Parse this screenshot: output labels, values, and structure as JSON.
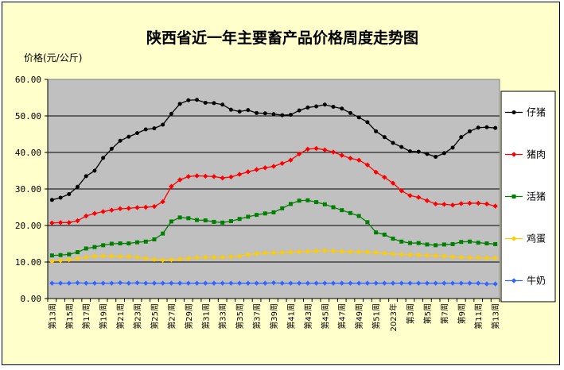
{
  "chart_data": {
    "type": "line",
    "title": "陕西省近一年主要畜产品价格周度走势图",
    "ylabel": "价格(元/公斤)",
    "xlabel": "",
    "ylim": [
      0,
      60
    ],
    "yticks": [
      "0.00",
      "10.00",
      "20.00",
      "30.00",
      "40.00",
      "50.00",
      "60.00"
    ],
    "x": [
      "第13周",
      "第14周",
      "第15周",
      "第16周",
      "第17周",
      "第18周",
      "第19周",
      "第20周",
      "第21周",
      "第22周",
      "第23周",
      "第24周",
      "第25周",
      "第26周",
      "第27周",
      "第28周",
      "第29周",
      "第30周",
      "第31周",
      "第32周",
      "第33周",
      "第34周",
      "第35周",
      "第36周",
      "第37周",
      "第38周",
      "第39周",
      "第40周",
      "第41周",
      "第42周",
      "第43周",
      "第44周",
      "第45周",
      "第46周",
      "第47周",
      "第48周",
      "第49周",
      "第50周",
      "第51周",
      "第52周",
      "2023年",
      "第2周",
      "第3周",
      "第4周",
      "第5周",
      "第6周",
      "第7周",
      "第8周",
      "第9周",
      "第10周",
      "第11周",
      "第12周",
      "第13周"
    ],
    "grid": true,
    "legend_position": "right",
    "plot_background": "#C0C0C0",
    "chart_background": "#FFFFCC",
    "series": [
      {
        "name": "仔猪",
        "color": "#000000",
        "marker": "circle",
        "values": [
          27.0,
          27.6,
          28.6,
          30.6,
          33.5,
          35.0,
          38.5,
          41.0,
          43.2,
          44.3,
          45.3,
          46.3,
          46.6,
          47.6,
          50.6,
          53.3,
          54.3,
          54.4,
          53.6,
          53.5,
          53.1,
          51.7,
          51.2,
          51.6,
          50.8,
          50.7,
          50.5,
          50.2,
          50.3,
          51.5,
          52.3,
          52.6,
          53.1,
          52.5,
          52.0,
          50.8,
          49.6,
          48.3,
          45.8,
          44.2,
          42.6,
          41.5,
          40.3,
          40.2,
          39.6,
          38.8,
          39.8,
          41.3,
          44.2,
          45.8,
          46.8,
          46.9,
          46.7
        ]
      },
      {
        "name": "猪肉",
        "color": "#FF0000",
        "marker": "diamond",
        "values": [
          20.7,
          20.8,
          20.8,
          21.3,
          22.6,
          23.3,
          23.8,
          24.2,
          24.6,
          24.7,
          24.9,
          25.0,
          25.2,
          26.5,
          30.7,
          32.5,
          33.4,
          33.6,
          33.5,
          33.4,
          33.0,
          33.3,
          34.0,
          34.7,
          35.3,
          35.8,
          36.2,
          37.0,
          37.9,
          39.6,
          40.9,
          41.1,
          40.7,
          40.1,
          39.2,
          38.4,
          37.9,
          36.6,
          34.6,
          33.2,
          31.6,
          29.5,
          28.2,
          27.7,
          26.8,
          25.9,
          25.8,
          25.6,
          26.0,
          26.1,
          26.1,
          25.9,
          25.3
        ]
      },
      {
        "name": "活猪",
        "color": "#008000",
        "marker": "square",
        "values": [
          11.8,
          11.9,
          12.1,
          12.7,
          13.7,
          14.1,
          14.6,
          15.0,
          15.1,
          15.1,
          15.4,
          15.6,
          16.2,
          17.8,
          21.1,
          22.2,
          22.0,
          21.5,
          21.4,
          21.0,
          20.8,
          21.2,
          21.8,
          22.4,
          22.9,
          23.3,
          23.6,
          24.7,
          25.9,
          26.8,
          26.9,
          26.4,
          25.8,
          25.0,
          24.2,
          23.4,
          22.6,
          20.9,
          18.1,
          17.5,
          16.4,
          15.6,
          15.2,
          15.2,
          14.8,
          14.6,
          14.8,
          14.9,
          15.5,
          15.6,
          15.3,
          15.1,
          14.9
        ]
      },
      {
        "name": "鸡蛋",
        "color": "#FFCC00",
        "marker": "diamond",
        "values": [
          10.2,
          10.4,
          10.6,
          11.0,
          11.3,
          11.6,
          11.7,
          11.6,
          11.5,
          11.5,
          11.3,
          11.0,
          10.7,
          10.5,
          10.6,
          10.8,
          11.0,
          11.2,
          11.3,
          11.3,
          11.3,
          11.4,
          11.6,
          12.0,
          12.3,
          12.5,
          12.5,
          12.6,
          12.7,
          12.8,
          12.9,
          13.0,
          13.1,
          13.0,
          12.9,
          12.8,
          12.8,
          12.7,
          12.6,
          12.4,
          12.2,
          12.1,
          12.0,
          11.9,
          11.8,
          11.7,
          11.6,
          11.4,
          11.3,
          11.2,
          11.2,
          11.1,
          11.1
        ]
      },
      {
        "name": "牛奶",
        "color": "#3366FF",
        "marker": "diamond",
        "values": [
          4.2,
          4.2,
          4.2,
          4.3,
          4.2,
          4.2,
          4.2,
          4.2,
          4.3,
          4.2,
          4.3,
          4.2,
          4.2,
          4.2,
          4.2,
          4.2,
          4.2,
          4.2,
          4.2,
          4.2,
          4.2,
          4.2,
          4.2,
          4.2,
          4.2,
          4.2,
          4.3,
          4.2,
          4.2,
          4.2,
          4.2,
          4.2,
          4.2,
          4.2,
          4.2,
          4.2,
          4.2,
          4.2,
          4.2,
          4.2,
          4.2,
          4.2,
          4.2,
          4.2,
          4.2,
          4.2,
          4.2,
          4.2,
          4.2,
          4.2,
          4.2,
          4.0,
          4.0
        ]
      }
    ]
  }
}
